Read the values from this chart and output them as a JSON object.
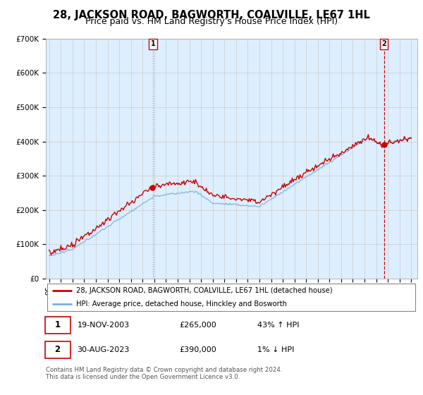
{
  "title": "28, JACKSON ROAD, BAGWORTH, COALVILLE, LE67 1HL",
  "subtitle": "Price paid vs. HM Land Registry's House Price Index (HPI)",
  "ylim": [
    0,
    700000
  ],
  "yticks": [
    0,
    100000,
    200000,
    300000,
    400000,
    500000,
    600000,
    700000
  ],
  "ytick_labels": [
    "£0",
    "£100K",
    "£200K",
    "£300K",
    "£400K",
    "£500K",
    "£600K",
    "£700K"
  ],
  "sale1": {
    "date_num": 2003.89,
    "price": 265000,
    "label": "1",
    "date_str": "19-NOV-2003",
    "price_str": "£265,000",
    "hpi_str": "43% ↑ HPI"
  },
  "sale2": {
    "date_num": 2023.66,
    "price": 390000,
    "label": "2",
    "date_str": "30-AUG-2023",
    "price_str": "£390,000",
    "hpi_str": "1% ↓ HPI"
  },
  "legend_line1": "28, JACKSON ROAD, BAGWORTH, COALVILLE, LE67 1HL (detached house)",
  "legend_line2": "HPI: Average price, detached house, Hinckley and Bosworth",
  "footer1": "Contains HM Land Registry data © Crown copyright and database right 2024.",
  "footer2": "This data is licensed under the Open Government Licence v3.0.",
  "line_color": "#cc0000",
  "hpi_color": "#7ab0d8",
  "grid_color": "#cccccc",
  "bg_color": "#ddeeff",
  "title_fontsize": 10.5,
  "subtitle_fontsize": 9,
  "tick_fontsize": 7.5,
  "xlim_left": 1994.7,
  "xlim_right": 2026.5
}
